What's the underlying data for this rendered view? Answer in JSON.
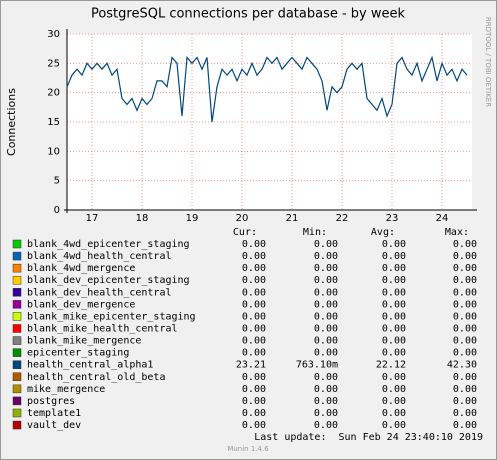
{
  "chart_data": {
    "type": "line",
    "title": "PostgreSQL connections per database - by week",
    "y_label": "Connections",
    "side_text": "RRDTOOL / TOBI OETIKER",
    "xlim": [
      16.5,
      24.6
    ],
    "xticks": [
      17,
      18,
      19,
      20,
      21,
      22,
      23,
      24
    ],
    "ylim": [
      0,
      30
    ],
    "yticks": [
      0,
      5,
      10,
      15,
      20,
      25,
      30
    ],
    "grid": true,
    "x": [
      16.5,
      16.6,
      16.7,
      16.8,
      16.9,
      17.0,
      17.1,
      17.2,
      17.3,
      17.4,
      17.5,
      17.6,
      17.7,
      17.8,
      17.9,
      18.0,
      18.1,
      18.2,
      18.3,
      18.4,
      18.5,
      18.6,
      18.7,
      18.8,
      18.9,
      19.0,
      19.1,
      19.2,
      19.3,
      19.4,
      19.5,
      19.6,
      19.7,
      19.8,
      19.9,
      20.0,
      20.1,
      20.2,
      20.3,
      20.4,
      20.5,
      20.6,
      20.7,
      20.8,
      20.9,
      21.0,
      21.1,
      21.2,
      21.3,
      21.4,
      21.5,
      21.6,
      21.7,
      21.8,
      21.9,
      22.0,
      22.1,
      22.2,
      22.3,
      22.4,
      22.5,
      22.6,
      22.7,
      22.8,
      22.9,
      23.0,
      23.1,
      23.2,
      23.3,
      23.4,
      23.5,
      23.6,
      23.7,
      23.8,
      23.9,
      24.0,
      24.1,
      24.2,
      24.3,
      24.4,
      24.5
    ],
    "stat_headers": [
      "Cur:",
      "Min:",
      "Avg:",
      "Max:"
    ],
    "series": [
      {
        "name": "blank_4wd_epicenter_staging",
        "color": "#00cc00",
        "stats": [
          "0.00",
          "0.00",
          "0.00",
          "0.00"
        ]
      },
      {
        "name": "blank_4wd_health_central",
        "color": "#0066b3",
        "stats": [
          "0.00",
          "0.00",
          "0.00",
          "0.00"
        ]
      },
      {
        "name": "blank_4wd_mergence",
        "color": "#ff8000",
        "stats": [
          "0.00",
          "0.00",
          "0.00",
          "0.00"
        ]
      },
      {
        "name": "blank_dev_epicenter_staging",
        "color": "#ffcc00",
        "stats": [
          "0.00",
          "0.00",
          "0.00",
          "0.00"
        ]
      },
      {
        "name": "blank_dev_health_central",
        "color": "#330099",
        "stats": [
          "0.00",
          "0.00",
          "0.00",
          "0.00"
        ]
      },
      {
        "name": "blank_dev_mergence",
        "color": "#990099",
        "stats": [
          "0.00",
          "0.00",
          "0.00",
          "0.00"
        ]
      },
      {
        "name": "blank_mike_epicenter_staging",
        "color": "#ccff00",
        "stats": [
          "0.00",
          "0.00",
          "0.00",
          "0.00"
        ]
      },
      {
        "name": "blank_mike_health_central",
        "color": "#ff0000",
        "stats": [
          "0.00",
          "0.00",
          "0.00",
          "0.00"
        ]
      },
      {
        "name": "blank_mike_mergence",
        "color": "#808080",
        "stats": [
          "0.00",
          "0.00",
          "0.00",
          "0.00"
        ]
      },
      {
        "name": "epicenter_staging",
        "color": "#008f00",
        "stats": [
          "0.00",
          "0.00",
          "0.00",
          "0.00"
        ]
      },
      {
        "name": "health_central_alpha1",
        "color": "#00487d",
        "stats": [
          "23.21",
          "763.10m",
          "22.12",
          "42.30"
        ],
        "values": [
          21,
          23,
          24,
          23,
          25,
          24,
          25,
          24,
          25,
          23,
          24,
          19,
          18,
          19,
          17,
          19,
          18,
          19,
          22,
          22,
          21,
          26,
          25,
          16,
          26,
          25,
          26,
          24,
          26,
          15,
          21,
          24,
          23,
          24,
          22,
          24,
          23,
          25,
          23,
          24,
          26,
          25,
          26,
          24,
          25,
          26,
          25,
          24,
          26,
          25,
          24,
          22,
          17,
          21,
          20,
          21,
          24,
          25,
          24,
          25,
          19,
          18,
          17,
          19,
          16,
          18,
          25,
          26,
          24,
          23,
          25,
          22,
          24,
          26,
          22,
          25,
          23,
          24,
          22,
          24,
          23
        ]
      },
      {
        "name": "health_central_old_beta",
        "color": "#b35a00",
        "stats": [
          "0.00",
          "0.00",
          "0.00",
          "0.00"
        ]
      },
      {
        "name": "mike_mergence",
        "color": "#b38f00",
        "stats": [
          "0.00",
          "0.00",
          "0.00",
          "0.00"
        ]
      },
      {
        "name": "postgres",
        "color": "#6b006b",
        "stats": [
          "0.00",
          "0.00",
          "0.00",
          "0.00"
        ]
      },
      {
        "name": "template1",
        "color": "#8fb300",
        "stats": [
          "0.00",
          "0.00",
          "0.00",
          "0.00"
        ]
      },
      {
        "name": "vault_dev",
        "color": "#b30000",
        "stats": [
          "0.00",
          "0.00",
          "0.00",
          "0.00"
        ]
      }
    ],
    "last_update": "Last update:  Sun Feb 24 23:40:10 2019",
    "footer": "Munin 1.4.6"
  }
}
